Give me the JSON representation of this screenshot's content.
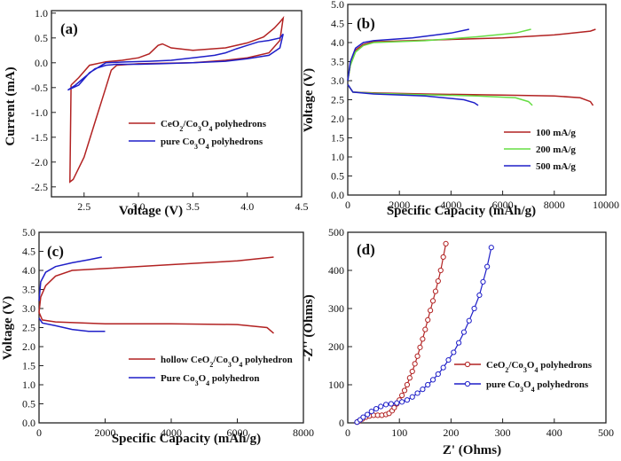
{
  "colors": {
    "red": "#b22222",
    "blue": "#1f1fc8",
    "green": "#66dd44"
  },
  "chart_data": [
    {
      "id": "a",
      "panel_label": "(a)",
      "type": "line",
      "xlabel": "Voltage (V)",
      "ylabel": "Current (mA)",
      "xlim": [
        2.2,
        4.5
      ],
      "ylim": [
        -2.7,
        1.05
      ],
      "xticks": [
        2.5,
        3.0,
        3.5,
        4.0,
        4.5
      ],
      "yticks": [
        -2.5,
        -2.0,
        -1.5,
        -1.0,
        -0.5,
        0.0,
        0.5,
        1.0
      ],
      "xtick_labels": [
        "2.5",
        "3.0",
        "3.5",
        "4.0",
        "4.5"
      ],
      "ytick_labels": [
        "-2.5",
        "-2.0",
        "-1.5",
        "-1.0",
        "-0.5",
        "0.0",
        "0.5",
        "1.0"
      ],
      "legend_position": "lower-right",
      "series": [
        {
          "name": "CeO2/Co3O4 polyhedrons",
          "name_main": "CeO",
          "sub1": "2",
          "name_mid": "/Co",
          "sub2": "3",
          "name_mid2": "O",
          "sub3": "4",
          "name_end": " polyhedrons",
          "color": "red",
          "x": [
            2.38,
            2.45,
            2.55,
            2.7,
            2.85,
            3.0,
            3.1,
            3.18,
            3.22,
            3.3,
            3.5,
            3.8,
            4.0,
            4.15,
            4.25,
            4.3,
            4.33,
            4.3,
            4.2,
            4.0,
            3.8,
            3.5,
            3.0,
            2.8,
            2.75,
            2.7,
            2.6,
            2.5,
            2.4,
            2.37,
            2.38
          ],
          "y": [
            -0.45,
            -0.3,
            -0.05,
            0.02,
            0.05,
            0.1,
            0.18,
            0.35,
            0.38,
            0.3,
            0.25,
            0.3,
            0.4,
            0.52,
            0.7,
            0.82,
            0.9,
            0.45,
            0.2,
            0.1,
            0.05,
            0.0,
            -0.02,
            -0.05,
            -0.15,
            -0.5,
            -1.2,
            -1.9,
            -2.35,
            -2.4,
            -0.45
          ]
        },
        {
          "name": "pure Co3O4 polyhedrons",
          "name_main": "pure Co",
          "sub1": "3",
          "name_mid": "O",
          "sub2": "4",
          "name_mid2": "",
          "sub3": "",
          "name_end": " polyhedrons",
          "color": "blue",
          "x": [
            2.35,
            2.45,
            2.55,
            2.7,
            2.9,
            3.1,
            3.3,
            3.5,
            3.7,
            3.8,
            3.9,
            4.0,
            4.1,
            4.2,
            4.3,
            4.33,
            4.3,
            4.2,
            4.0,
            3.8,
            3.5,
            3.2,
            3.0,
            2.8,
            2.7,
            2.6,
            2.5,
            2.42,
            2.35
          ],
          "y": [
            -0.55,
            -0.45,
            -0.2,
            0.0,
            0.02,
            0.03,
            0.05,
            0.1,
            0.15,
            0.2,
            0.28,
            0.35,
            0.42,
            0.45,
            0.5,
            0.58,
            0.3,
            0.15,
            0.08,
            0.03,
            0.0,
            -0.02,
            -0.03,
            -0.03,
            -0.05,
            -0.12,
            -0.3,
            -0.45,
            -0.55
          ]
        }
      ]
    },
    {
      "id": "b",
      "panel_label": "(b)",
      "type": "line",
      "xlabel": "Specific Capacity (mAh/g)",
      "ylabel": "Voltage (V)",
      "xlim": [
        0,
        10000
      ],
      "ylim": [
        0,
        5.0
      ],
      "xticks": [
        0,
        2000,
        4000,
        6000,
        8000,
        10000
      ],
      "yticks": [
        0.0,
        0.5,
        1.0,
        1.5,
        2.0,
        2.5,
        3.0,
        3.5,
        4.0,
        4.5,
        5.0
      ],
      "xtick_labels": [
        "0",
        "2000",
        "4000",
        "6000",
        "8000",
        "10000"
      ],
      "ytick_labels": [
        "0.0",
        "0.5",
        "1.0",
        "1.5",
        "2.0",
        "2.5",
        "3.0",
        "3.5",
        "4.0",
        "4.5",
        "5.0"
      ],
      "legend_position": "lower-right",
      "series": [
        {
          "name": "100 mA/g",
          "color": "red",
          "discharge": {
            "x": [
              0,
              200,
              1000,
              3000,
              6000,
              8000,
              9000,
              9400,
              9500
            ],
            "y": [
              2.9,
              2.7,
              2.68,
              2.65,
              2.62,
              2.6,
              2.55,
              2.45,
              2.35
            ]
          },
          "charge": {
            "x": [
              0,
              100,
              300,
              600,
              1000,
              3000,
              6000,
              8000,
              9400,
              9600
            ],
            "y": [
              3.0,
              3.4,
              3.8,
              3.95,
              4.02,
              4.06,
              4.12,
              4.2,
              4.3,
              4.35
            ]
          }
        },
        {
          "name": "200 mA/g",
          "color": "green",
          "discharge": {
            "x": [
              0,
              200,
              1000,
              3000,
              5000,
              6500,
              7000,
              7150
            ],
            "y": [
              2.9,
              2.7,
              2.67,
              2.63,
              2.6,
              2.55,
              2.45,
              2.35
            ]
          },
          "charge": {
            "x": [
              0,
              100,
              300,
              600,
              1000,
              3000,
              5000,
              6500,
              7100
            ],
            "y": [
              3.0,
              3.4,
              3.75,
              3.92,
              4.0,
              4.05,
              4.15,
              4.25,
              4.35
            ]
          }
        },
        {
          "name": "500 mA/g",
          "color": "blue",
          "discharge": {
            "x": [
              0,
              200,
              1000,
              3000,
              4500,
              4900,
              5050
            ],
            "y": [
              2.9,
              2.7,
              2.65,
              2.6,
              2.5,
              2.42,
              2.35
            ]
          },
          "charge": {
            "x": [
              0,
              100,
              300,
              600,
              1000,
              2500,
              4000,
              4700
            ],
            "y": [
              3.0,
              3.5,
              3.85,
              4.0,
              4.05,
              4.12,
              4.25,
              4.35
            ]
          }
        }
      ]
    },
    {
      "id": "c",
      "panel_label": "(c)",
      "type": "line",
      "xlabel": "Specific Capacity (mAh/g)",
      "ylabel": "Voltage (V)",
      "xlim": [
        0,
        8000
      ],
      "ylim": [
        0,
        5.0
      ],
      "xticks": [
        0,
        2000,
        4000,
        6000,
        8000
      ],
      "yticks": [
        0.0,
        0.5,
        1.0,
        1.5,
        2.0,
        2.5,
        3.0,
        3.5,
        4.0,
        4.5,
        5.0
      ],
      "xtick_labels": [
        "0",
        "2000",
        "4000",
        "6000",
        "8000"
      ],
      "ytick_labels": [
        "0.0",
        "0.5",
        "1.0",
        "1.5",
        "2.0",
        "2.5",
        "3.0",
        "3.5",
        "4.0",
        "4.5",
        "5.0"
      ],
      "legend_position": "lower-right",
      "series": [
        {
          "name": "hollow CeO2/Co3O4 polyhedron",
          "name_main": "hollow CeO",
          "sub1": "2",
          "name_mid": "/Co",
          "sub2": "3",
          "name_mid2": "O",
          "sub3": "4",
          "name_end": " polyhedron",
          "color": "red",
          "discharge": {
            "x": [
              0,
              100,
              500,
              2000,
              4000,
              6000,
              6900,
              7100
            ],
            "y": [
              2.9,
              2.7,
              2.65,
              2.6,
              2.6,
              2.58,
              2.5,
              2.35
            ]
          },
          "charge": {
            "x": [
              0,
              50,
              200,
              500,
              1000,
              2000,
              4000,
              6000,
              7100
            ],
            "y": [
              2.9,
              3.3,
              3.6,
              3.85,
              4.0,
              4.05,
              4.15,
              4.25,
              4.35
            ]
          }
        },
        {
          "name": "Pure Co3O4 polyhedron",
          "name_main": "Pure Co",
          "sub1": "3",
          "name_mid": "O",
          "sub2": "4",
          "name_mid2": "",
          "sub3": "",
          "name_end": " polyhedron",
          "color": "blue",
          "discharge": {
            "x": [
              0,
              100,
              500,
              1000,
              1500,
              2000
            ],
            "y": [
              2.75,
              2.62,
              2.55,
              2.45,
              2.4,
              2.4
            ]
          },
          "charge": {
            "x": [
              0,
              50,
              200,
              500,
              1000,
              1500,
              1900
            ],
            "y": [
              3.2,
              3.7,
              3.95,
              4.1,
              4.2,
              4.28,
              4.35
            ]
          }
        }
      ]
    },
    {
      "id": "d",
      "panel_label": "(d)",
      "type": "scatter",
      "xlabel": "Z' (Ohms)",
      "ylabel": "-Z'' (Ohms)",
      "xlim": [
        0,
        500
      ],
      "ylim": [
        0,
        500
      ],
      "xticks": [
        0,
        100,
        200,
        300,
        400,
        500
      ],
      "yticks": [
        0,
        100,
        200,
        300,
        400,
        500
      ],
      "xtick_labels": [
        "0",
        "100",
        "200",
        "300",
        "400",
        "500"
      ],
      "ytick_labels": [
        "0",
        "100",
        "200",
        "300",
        "400",
        "500"
      ],
      "legend_position": "lower-right",
      "series": [
        {
          "name": "CeO2/Co3O4 polyhedrons",
          "name_main": "CeO",
          "sub1": "2",
          "name_mid": "/Co",
          "sub2": "3",
          "name_mid2": "O",
          "sub3": "4",
          "name_end": " polyhedrons",
          "color": "red",
          "x": [
            18,
            22,
            28,
            35,
            42,
            50,
            58,
            66,
            74,
            80,
            86,
            90,
            95,
            100,
            105,
            110,
            115,
            120,
            125,
            130,
            135,
            140,
            145,
            150,
            155,
            160,
            165,
            170,
            175,
            180,
            185,
            190
          ],
          "y": [
            2,
            5,
            10,
            15,
            18,
            20,
            20,
            20,
            22,
            25,
            32,
            40,
            50,
            60,
            72,
            85,
            100,
            118,
            135,
            155,
            175,
            198,
            220,
            245,
            270,
            295,
            320,
            345,
            372,
            400,
            435,
            470
          ]
        },
        {
          "name": "pure Co3O4 polyhedrons",
          "name_main": "pure Co",
          "sub1": "3",
          "name_mid": "O",
          "sub2": "4",
          "name_mid2": "",
          "sub3": "",
          "name_end": " polyhedrons",
          "color": "blue",
          "x": [
            18,
            24,
            30,
            38,
            46,
            55,
            64,
            74,
            84,
            95,
            105,
            115,
            125,
            135,
            145,
            155,
            165,
            175,
            185,
            195,
            205,
            215,
            225,
            235,
            245,
            255,
            262,
            270,
            278
          ],
          "y": [
            2,
            8,
            15,
            22,
            30,
            37,
            43,
            48,
            50,
            52,
            55,
            60,
            68,
            78,
            88,
            100,
            113,
            128,
            145,
            165,
            185,
            210,
            238,
            268,
            300,
            335,
            370,
            410,
            460
          ]
        }
      ]
    }
  ]
}
